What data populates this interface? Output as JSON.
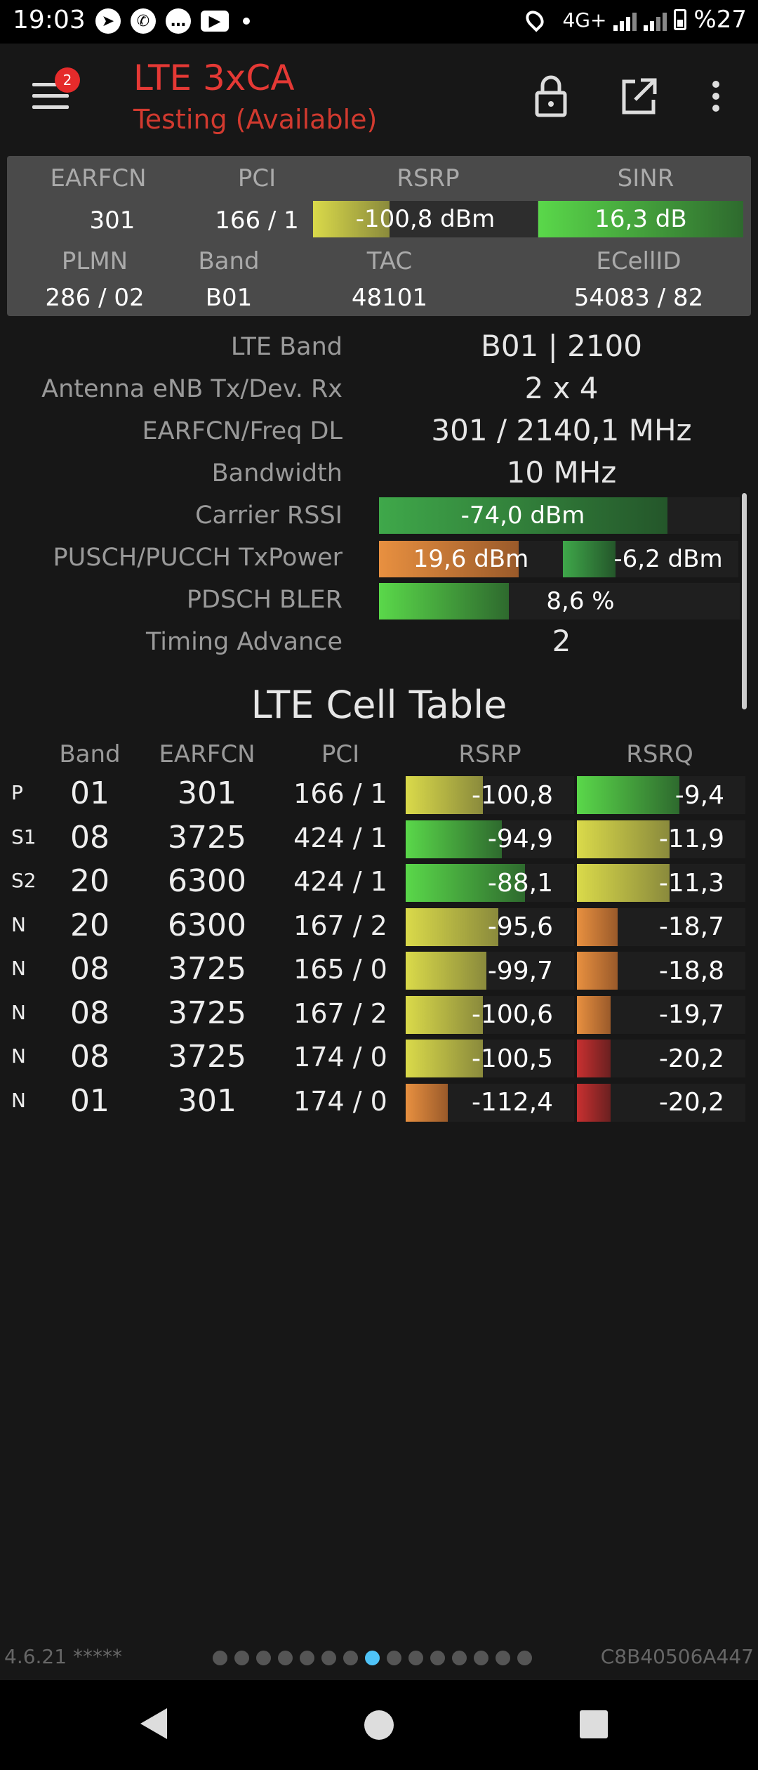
{
  "status_bar": {
    "time": "19:03",
    "network": "4G+",
    "battery": "%27",
    "icons": [
      "telegram-icon",
      "whatsapp-icon",
      "chat-icon",
      "youtube-icon"
    ]
  },
  "app_bar": {
    "badge": "2",
    "title": "LTE 3xCA",
    "subtitle": "Testing (Available)"
  },
  "summary": {
    "labels": {
      "earfcn": "EARFCN",
      "pci": "PCI",
      "rsrp": "RSRP",
      "sinr": "SINR",
      "plmn": "PLMN",
      "band": "Band",
      "tac": "TAC",
      "ecellid": "ECellID"
    },
    "values": {
      "earfcn": "301",
      "pci": "166 / 1",
      "rsrp": "-100,8 dBm",
      "sinr": "16,3 dB",
      "plmn": "286 / 02",
      "band": "B01",
      "tac": "48101",
      "ecellid": "54083 / 82"
    },
    "rsrp_level": 0.34,
    "sinr_level": 1.0
  },
  "details": {
    "lte_band": {
      "label": "LTE Band",
      "value": "B01 | 2100"
    },
    "antenna": {
      "label": "Antenna eNB Tx/Dev. Rx",
      "value": "2 x 4"
    },
    "earfcn_freq": {
      "label": "EARFCN/Freq DL",
      "value": "301 / 2140,1 MHz"
    },
    "bandwidth": {
      "label": "Bandwidth",
      "value": "10 MHz"
    },
    "carrier_rssi": {
      "label": "Carrier RSSI",
      "value": "-74,0 dBm",
      "level": 0.8
    },
    "txpower": {
      "label": "PUSCH/PUCCH TxPower",
      "pusch": "19,6 dBm",
      "pucch": "-6,2 dBm",
      "pusch_level": 0.76,
      "pucch_level": 0.3
    },
    "bler": {
      "label": "PDSCH BLER",
      "value": "8,6 %",
      "level": 0.36
    },
    "timing_advance": {
      "label": "Timing Advance",
      "value": "2"
    }
  },
  "cell_table": {
    "title": "LTE Cell Table",
    "headers": {
      "band": "Band",
      "earfcn": "EARFCN",
      "pci": "PCI",
      "rsrp": "RSRP",
      "rsrq": "RSRQ"
    },
    "rows": [
      {
        "type": "P",
        "band": "01",
        "earfcn": "301",
        "pci": "166 / 1",
        "rsrp": "-100,8",
        "rsrq": "-9,4",
        "rsrp_level": 0.46,
        "rsrq_level": 0.61,
        "rsrp_color": "yellow",
        "rsrq_color": "green"
      },
      {
        "type": "S1",
        "band": "08",
        "earfcn": "3725",
        "pci": "424 / 1",
        "rsrp": "-94,9",
        "rsrq": "-11,9",
        "rsrp_level": 0.57,
        "rsrq_level": 0.55,
        "rsrp_color": "green",
        "rsrq_color": "yellow"
      },
      {
        "type": "S2",
        "band": "20",
        "earfcn": "6300",
        "pci": "424 / 1",
        "rsrp": "-88,1",
        "rsrq": "-11,3",
        "rsrp_level": 0.71,
        "rsrq_level": 0.55,
        "rsrp_color": "green",
        "rsrq_color": "yellow"
      },
      {
        "type": "N",
        "band": "20",
        "earfcn": "6300",
        "pci": "167 / 2",
        "rsrp": "-95,6",
        "rsrq": "-18,7",
        "rsrp_level": 0.55,
        "rsrq_level": 0.24,
        "rsrp_color": "yellow",
        "rsrq_color": "orange"
      },
      {
        "type": "N",
        "band": "08",
        "earfcn": "3725",
        "pci": "165 / 0",
        "rsrp": "-99,7",
        "rsrq": "-18,8",
        "rsrp_level": 0.48,
        "rsrq_level": 0.24,
        "rsrp_color": "yellow",
        "rsrq_color": "orange"
      },
      {
        "type": "N",
        "band": "08",
        "earfcn": "3725",
        "pci": "167 / 2",
        "rsrp": "-100,6",
        "rsrq": "-19,7",
        "rsrp_level": 0.46,
        "rsrq_level": 0.2,
        "rsrp_color": "yellow",
        "rsrq_color": "orange"
      },
      {
        "type": "N",
        "band": "08",
        "earfcn": "3725",
        "pci": "174 / 0",
        "rsrp": "-100,5",
        "rsrq": "-20,2",
        "rsrp_level": 0.46,
        "rsrq_level": 0.2,
        "rsrp_color": "yellow",
        "rsrq_color": "red"
      },
      {
        "type": "N",
        "band": "01",
        "earfcn": "301",
        "pci": "174 / 0",
        "rsrp": "-112,4",
        "rsrq": "-20,2",
        "rsrp_level": 0.25,
        "rsrq_level": 0.2,
        "rsrp_color": "orange",
        "rsrq_color": "red"
      }
    ]
  },
  "footer": {
    "version": "4.6.21 *****",
    "device_id": "C8B40506A447",
    "page_count": 15,
    "page_active": 8
  }
}
